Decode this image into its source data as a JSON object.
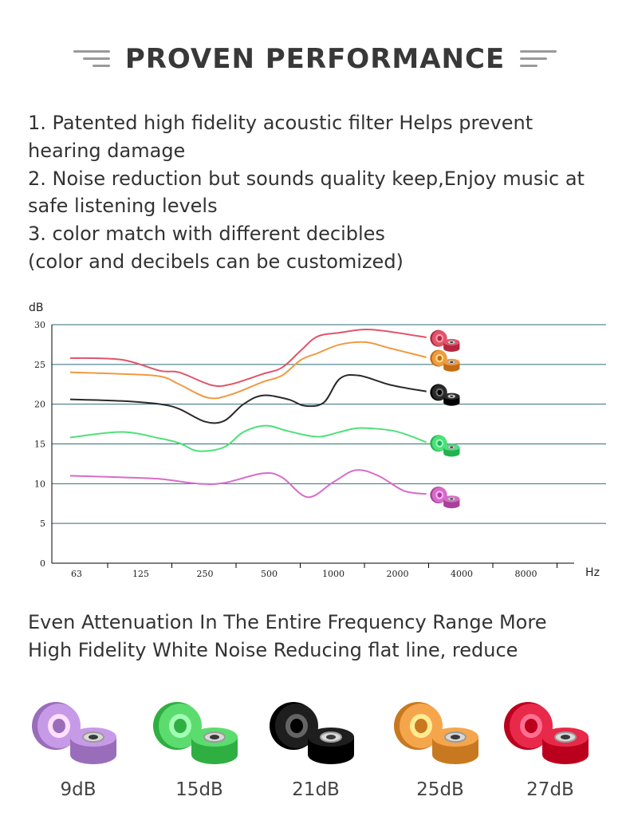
{
  "header": {
    "title": "PROVEN PERFORMANCE"
  },
  "features": [
    "1. Patented high fidelity acoustic filter Helps prevent hearing damage",
    "2. Noise reduction but sounds quality keep,Enjoy music at safe listening levels",
    "3. color match with different decibles",
    "(color and decibels can be customized)"
  ],
  "chart_data": {
    "type": "line",
    "ylabel": "dB",
    "xlabel": "Hz",
    "x_ticks": [
      "63",
      "125",
      "250",
      "500",
      "1000",
      "2000",
      "4000",
      "8000"
    ],
    "y_ticks": [
      "30",
      "25",
      "20",
      "15",
      "10",
      "5",
      "0"
    ],
    "y_tick_values": [
      30,
      25,
      20,
      15,
      10,
      5,
      0
    ],
    "ylim": [
      0,
      30
    ],
    "grid": "horizontal",
    "series": [
      {
        "color": "#e0556a",
        "icon": "red-earplug-icon",
        "points": [
          [
            -0.1,
            25.8
          ],
          [
            0.7,
            25.6
          ],
          [
            1.3,
            24.2
          ],
          [
            1.6,
            24.0
          ],
          [
            2.1,
            22.4
          ],
          [
            2.4,
            22.5
          ],
          [
            2.9,
            23.8
          ],
          [
            3.2,
            24.6
          ],
          [
            3.5,
            26.8
          ],
          [
            3.75,
            28.5
          ],
          [
            4.1,
            29.0
          ],
          [
            4.5,
            29.4
          ],
          [
            4.9,
            29.1
          ],
          [
            5.45,
            28.4
          ]
        ]
      },
      {
        "color": "#ef9a42",
        "icon": "orange-earplug-icon",
        "points": [
          [
            -0.1,
            24.0
          ],
          [
            0.7,
            23.8
          ],
          [
            1.3,
            23.5
          ],
          [
            1.6,
            22.5
          ],
          [
            2.05,
            20.8
          ],
          [
            2.4,
            21.2
          ],
          [
            2.9,
            22.8
          ],
          [
            3.2,
            23.6
          ],
          [
            3.5,
            25.6
          ],
          [
            3.75,
            26.4
          ],
          [
            4.1,
            27.5
          ],
          [
            4.5,
            27.8
          ],
          [
            4.9,
            27.0
          ],
          [
            5.45,
            25.9
          ]
        ]
      },
      {
        "color": "#2a2a2a",
        "icon": "black-earplug-icon",
        "points": [
          [
            -0.1,
            20.6
          ],
          [
            0.7,
            20.4
          ],
          [
            1.3,
            20.0
          ],
          [
            1.6,
            19.4
          ],
          [
            2.0,
            17.8
          ],
          [
            2.3,
            17.9
          ],
          [
            2.6,
            20.0
          ],
          [
            2.9,
            21.1
          ],
          [
            3.3,
            20.6
          ],
          [
            3.55,
            19.8
          ],
          [
            3.85,
            20.2
          ],
          [
            4.1,
            23.2
          ],
          [
            4.4,
            23.6
          ],
          [
            4.9,
            22.4
          ],
          [
            5.45,
            21.6
          ]
        ]
      },
      {
        "color": "#4ee07a",
        "icon": "green-earplug-icon",
        "points": [
          [
            -0.1,
            15.8
          ],
          [
            0.7,
            16.5
          ],
          [
            1.3,
            15.7
          ],
          [
            1.6,
            15.1
          ],
          [
            1.9,
            14.1
          ],
          [
            2.3,
            14.6
          ],
          [
            2.6,
            16.5
          ],
          [
            2.95,
            17.3
          ],
          [
            3.3,
            16.6
          ],
          [
            3.75,
            15.9
          ],
          [
            4.1,
            16.5
          ],
          [
            4.4,
            17.0
          ],
          [
            4.9,
            16.7
          ],
          [
            5.2,
            16.0
          ],
          [
            5.45,
            15.2
          ]
        ]
      },
      {
        "color": "#d66cc8",
        "icon": "purple-earplug-icon",
        "points": [
          [
            -0.1,
            11.0
          ],
          [
            0.7,
            10.8
          ],
          [
            1.3,
            10.6
          ],
          [
            1.9,
            10.0
          ],
          [
            2.3,
            10.1
          ],
          [
            2.9,
            11.3
          ],
          [
            3.2,
            10.8
          ],
          [
            3.6,
            8.3
          ],
          [
            4.0,
            10.2
          ],
          [
            4.35,
            11.7
          ],
          [
            4.7,
            11.0
          ],
          [
            5.1,
            9.1
          ],
          [
            5.45,
            8.7
          ]
        ]
      }
    ]
  },
  "description": [
    "Even Attenuation In The Entire Frequency Range More",
    "High Fidelity White Noise Reducing flat line, reduce"
  ],
  "plugs": [
    {
      "label": "9dB",
      "color": "#c79ae8",
      "icon": "purple-earplug-icon"
    },
    {
      "label": "15dB",
      "color": "#5cdc6e",
      "icon": "green-earplug-icon"
    },
    {
      "label": "21dB",
      "color": "#1e1e1e",
      "icon": "black-earplug-icon"
    },
    {
      "label": "25dB",
      "color": "#f5a64c",
      "icon": "orange-earplug-icon"
    },
    {
      "label": "27dB",
      "color": "#e8294a",
      "icon": "red-earplug-icon"
    }
  ]
}
